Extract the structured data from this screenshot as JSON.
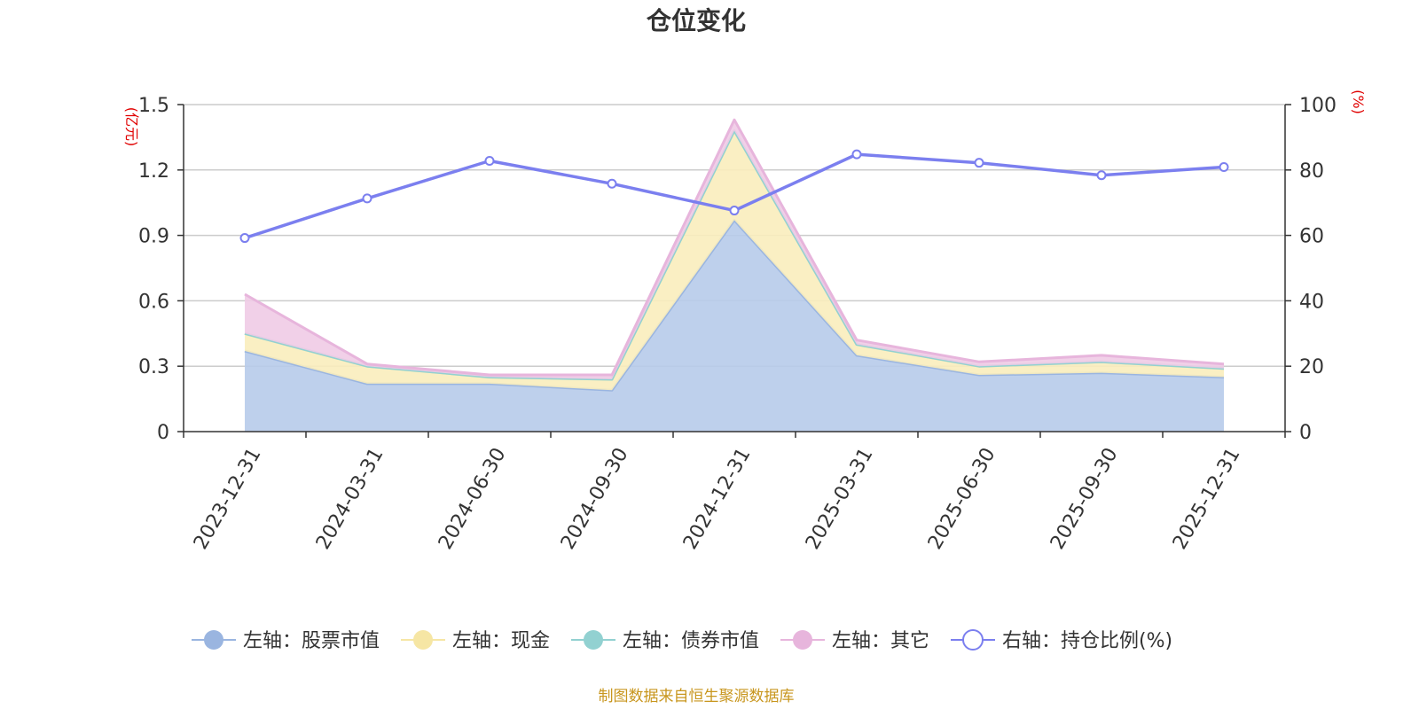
{
  "chart_data": {
    "type": "area",
    "title": "仓位变化",
    "categories": [
      "2023-12-31",
      "2024-03-31",
      "2024-06-30",
      "2024-09-30",
      "2024-12-31",
      "2025-03-31",
      "2025-06-30",
      "2025-09-30",
      "2025-12-31"
    ],
    "left_axis": {
      "unit": "(亿元)",
      "min": 0,
      "max": 1.5,
      "ticks": [
        "0",
        "0.3",
        "0.6",
        "0.9",
        "1.2",
        "1.5"
      ]
    },
    "right_axis": {
      "unit": "(%)",
      "min": 0,
      "max": 100,
      "ticks": [
        "0",
        "20",
        "40",
        "60",
        "80",
        "100"
      ]
    },
    "grid": true,
    "legend_position": "bottom",
    "series": [
      {
        "name": "左轴：股票市值",
        "type": "stacked-area",
        "axis": "left",
        "color": "#9ab5e0",
        "fill": "#b7cbea",
        "values": [
          0.37,
          0.22,
          0.22,
          0.19,
          0.97,
          0.35,
          0.26,
          0.27,
          0.25
        ]
      },
      {
        "name": "左轴：现金",
        "type": "stacked-area",
        "axis": "left",
        "color": "#f6e6a4",
        "fill": "#f9edbd",
        "values": [
          0.08,
          0.08,
          0.03,
          0.05,
          0.41,
          0.05,
          0.04,
          0.05,
          0.04
        ]
      },
      {
        "name": "左轴：债券市值",
        "type": "stacked-area",
        "axis": "left",
        "color": "#92d1d1",
        "fill": "#b0dede",
        "values": [
          0,
          0,
          0,
          0,
          0,
          0,
          0,
          0,
          0
        ]
      },
      {
        "name": "左轴：其它",
        "type": "stacked-area",
        "axis": "left",
        "color": "#e7b5dc",
        "fill": "#efcbe6",
        "values": [
          0.18,
          0.01,
          0.01,
          0.02,
          0.05,
          0.02,
          0.02,
          0.03,
          0.02
        ]
      },
      {
        "name": "右轴：持仓比例(%)",
        "type": "line",
        "axis": "right",
        "color": "#7b7fef",
        "values": [
          59.2,
          71.3,
          82.8,
          75.8,
          67.6,
          84.8,
          82.2,
          78.4,
          80.9
        ]
      }
    ]
  },
  "footer": {
    "source": "制图数据来自恒生聚源数据库"
  }
}
